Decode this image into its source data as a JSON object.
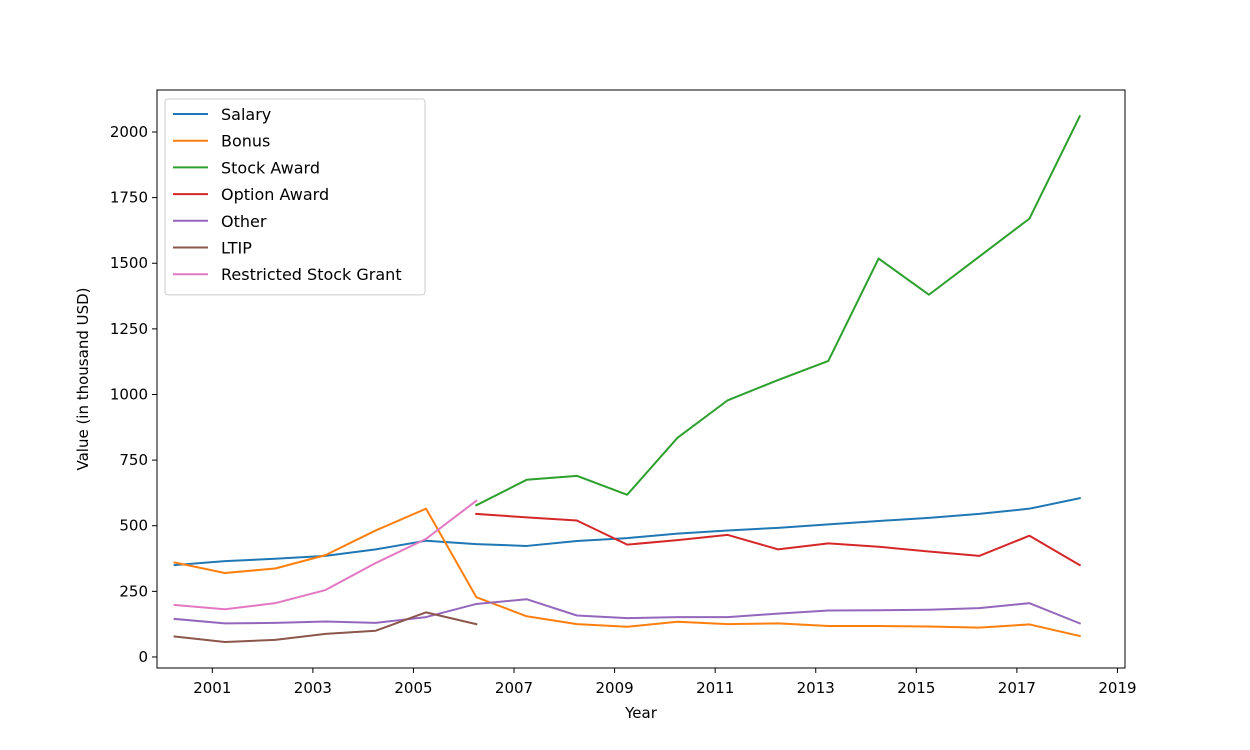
{
  "chart_data": {
    "type": "line",
    "xlabel": "Year",
    "ylabel": "Value (in thousand USD)",
    "xlim": [
      1999.9,
      2019.15
    ],
    "ylim": [
      -42,
      2160
    ],
    "xticks": [
      2001,
      2003,
      2005,
      2007,
      2009,
      2011,
      2013,
      2015,
      2017,
      2019
    ],
    "yticks": [
      0,
      250,
      500,
      750,
      1000,
      1250,
      1500,
      1750,
      2000
    ],
    "grid": false,
    "legend_position": "top-left",
    "series": [
      {
        "name": "Salary",
        "color": "#1f77b4",
        "x": [
          2000.25,
          2001.25,
          2002.25,
          2003.25,
          2004.25,
          2005.25,
          2006.25,
          2007.25,
          2008.25,
          2009.25,
          2010.25,
          2011.25,
          2012.25,
          2013.25,
          2014.25,
          2015.25,
          2016.25,
          2017.25,
          2018.25
        ],
        "y": [
          350,
          365,
          374,
          385,
          410,
          443,
          430,
          423,
          442,
          453,
          470,
          482,
          492,
          505,
          518,
          530,
          545,
          565,
          605
        ]
      },
      {
        "name": "Bonus",
        "color": "#ff7f0e",
        "x": [
          2000.25,
          2001.25,
          2002.25,
          2003.25,
          2004.25,
          2005.25,
          2006.25,
          2007.25,
          2008.25,
          2009.25,
          2010.25,
          2011.25,
          2012.25,
          2013.25,
          2014.25,
          2015.25,
          2016.25,
          2017.25,
          2018.25
        ],
        "y": [
          360,
          320,
          337,
          388,
          482,
          565,
          228,
          155,
          125,
          115,
          134,
          125,
          128,
          118,
          118,
          116,
          112,
          124,
          80
        ]
      },
      {
        "name": "Stock Award",
        "color": "#2ca02c",
        "x": [
          2006.25,
          2007.25,
          2008.25,
          2009.25,
          2010.25,
          2011.25,
          2012.25,
          2013.25,
          2014.25,
          2015.25,
          2016.25,
          2017.25,
          2018.25
        ],
        "y": [
          578,
          675,
          690,
          618,
          835,
          978,
          1055,
          1128,
          1518,
          1380,
          1525,
          1670,
          2060
        ]
      },
      {
        "name": "Option Award",
        "color": "#d62728",
        "x": [
          2006.25,
          2007.25,
          2008.25,
          2009.25,
          2010.25,
          2011.25,
          2012.25,
          2013.25,
          2014.25,
          2015.25,
          2016.25,
          2017.25,
          2018.25
        ],
        "y": [
          545,
          532,
          520,
          428,
          445,
          465,
          410,
          433,
          420,
          402,
          385,
          462,
          350
        ]
      },
      {
        "name": "Other",
        "color": "#9467bd",
        "x": [
          2000.25,
          2001.25,
          2002.25,
          2003.25,
          2004.25,
          2005.25,
          2006.25,
          2007.25,
          2008.25,
          2009.25,
          2010.25,
          2011.25,
          2012.25,
          2013.25,
          2014.25,
          2015.25,
          2016.25,
          2017.25,
          2018.25
        ],
        "y": [
          145,
          128,
          130,
          135,
          130,
          152,
          202,
          220,
          158,
          148,
          152,
          152,
          165,
          177,
          178,
          180,
          186,
          205,
          128
        ]
      },
      {
        "name": "LTIP",
        "color": "#8c564b",
        "x": [
          2000.25,
          2001.25,
          2002.25,
          2003.25,
          2004.25,
          2005.25,
          2006.25
        ],
        "y": [
          78,
          57,
          65,
          88,
          100,
          170,
          125
        ]
      },
      {
        "name": "Restricted Stock Grant",
        "color": "#e377c2",
        "x": [
          2000.25,
          2001.25,
          2002.25,
          2003.25,
          2004.25,
          2005.25,
          2006.25
        ],
        "y": [
          198,
          182,
          205,
          255,
          358,
          450,
          595
        ]
      }
    ]
  }
}
